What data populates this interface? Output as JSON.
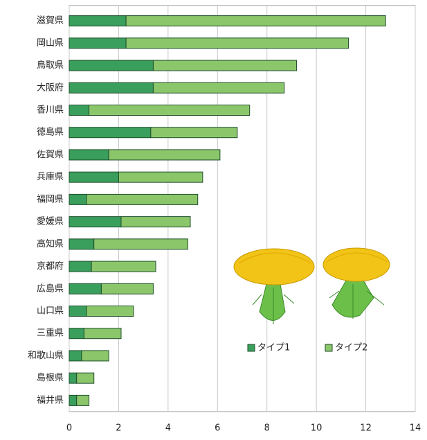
{
  "chart_data": {
    "type": "stacked-barh",
    "categories": [
      "滋賀県",
      "岡山県",
      "鳥取県",
      "大阪府",
      "香川県",
      "徳島県",
      "佐賀県",
      "兵庫県",
      "福岡県",
      "愛媛県",
      "高知県",
      "京都府",
      "広島県",
      "山口県",
      "三重県",
      "和歌山県",
      "島根県",
      "福井県"
    ],
    "series": [
      {
        "name": "タイプ1",
        "color": "#3a9e5c",
        "values": [
          2.3,
          2.3,
          3.4,
          3.4,
          0.8,
          3.3,
          1.6,
          2.0,
          0.7,
          2.1,
          1.0,
          0.9,
          1.3,
          0.7,
          0.6,
          0.5,
          0.3,
          0.3
        ]
      },
      {
        "name": "タイプ2",
        "color": "#8cc66b",
        "values": [
          10.5,
          9.0,
          5.8,
          5.3,
          6.5,
          3.5,
          4.5,
          3.4,
          4.5,
          2.8,
          3.8,
          2.6,
          2.1,
          1.9,
          1.5,
          1.1,
          0.7,
          0.5
        ]
      }
    ],
    "xlim": [
      0,
      14
    ],
    "xticks": [
      0,
      2,
      4,
      6,
      8,
      10,
      12,
      14
    ],
    "grid": true
  }
}
